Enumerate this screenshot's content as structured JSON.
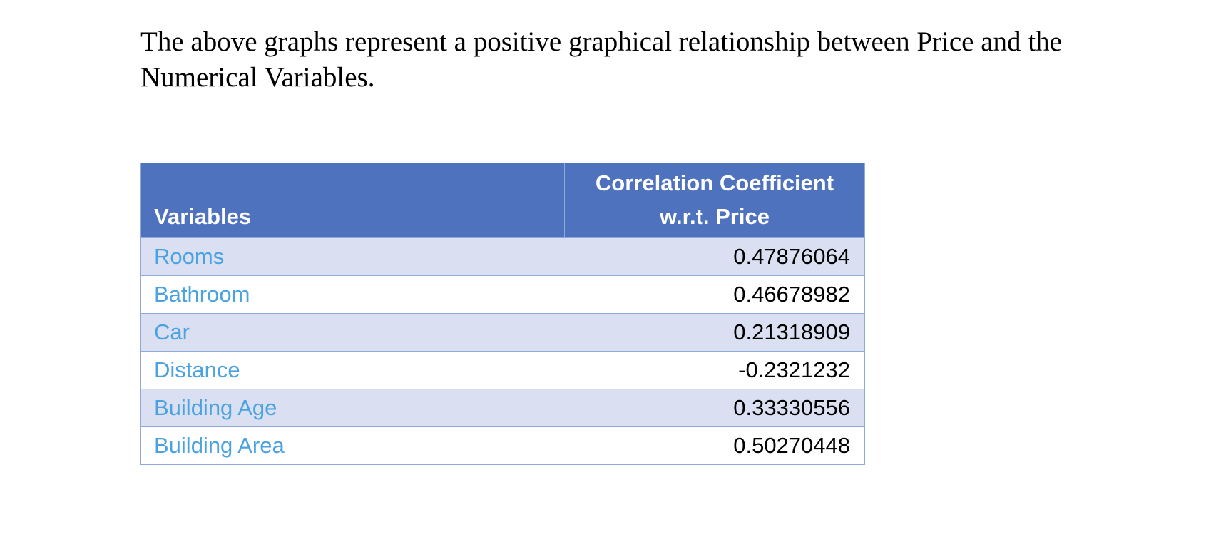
{
  "paragraph": "The above graphs represent a positive graphical relationship between Price and the Numerical Variables.",
  "table": {
    "header": [
      "Variables",
      "Correlation Coefficient w.r.t. Price"
    ],
    "rows": [
      [
        "Rooms",
        0.47876064
      ],
      [
        "Bathroom",
        0.46678982
      ],
      [
        "Car",
        0.21318909
      ],
      [
        "Distance",
        -0.2321232
      ],
      [
        "Building Age",
        0.33330556
      ],
      [
        "Building Area",
        0.50270448
      ]
    ]
  }
}
